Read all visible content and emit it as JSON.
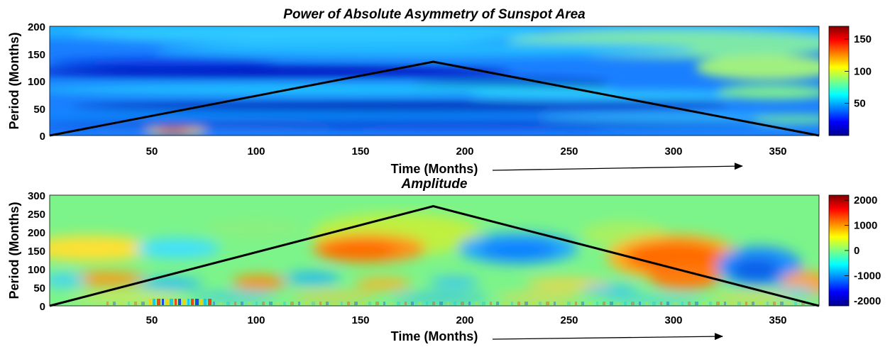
{
  "chart_data": [
    {
      "type": "heatmap",
      "title": "Power of Absolute Asymmetry of Sunspot Area",
      "xlabel": "Time (Months)",
      "ylabel": "Period (Months)",
      "xlim": [
        1,
        370
      ],
      "ylim": [
        0,
        200
      ],
      "xticks": [
        50,
        100,
        150,
        200,
        250,
        300,
        350
      ],
      "yticks": [
        0,
        50,
        100,
        150,
        200
      ],
      "colorbar": {
        "min": 0,
        "max": 170,
        "ticks": [
          50,
          100,
          150
        ]
      },
      "colormap": [
        "#00008f",
        "#0000ff",
        "#0080ff",
        "#00ffff",
        "#80ff80",
        "#ffff00",
        "#ff8000",
        "#ff0000",
        "#800000"
      ],
      "cone_of_influence": {
        "x": [
          1,
          185,
          370
        ],
        "y": [
          0,
          135,
          0
        ]
      },
      "time_arrow": true
    },
    {
      "type": "heatmap",
      "title": "Amplitude",
      "xlabel": "Time (Months)",
      "ylabel": "Period (Months)",
      "xlim": [
        1,
        370
      ],
      "ylim": [
        0,
        300
      ],
      "xticks": [
        50,
        100,
        150,
        200,
        250,
        300,
        350
      ],
      "yticks": [
        0,
        50,
        100,
        150,
        200,
        250,
        300
      ],
      "colorbar": {
        "min": -2200,
        "max": 2200,
        "ticks": [
          -2000,
          -1000,
          0,
          1000,
          2000
        ]
      },
      "colormap": [
        "#00008f",
        "#0000ff",
        "#0080ff",
        "#00ffff",
        "#80ff80",
        "#ffff00",
        "#ff8000",
        "#ff0000",
        "#800000"
      ],
      "cone_of_influence": {
        "x": [
          1,
          185,
          370
        ],
        "y": [
          0,
          270,
          0
        ]
      },
      "time_arrow": true
    }
  ]
}
